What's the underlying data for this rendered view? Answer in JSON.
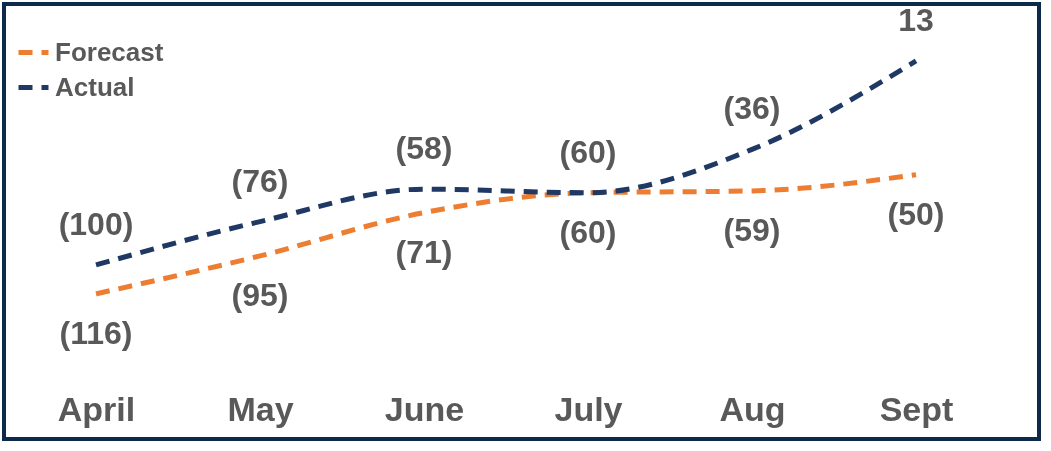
{
  "chart_data": {
    "type": "line",
    "categories": [
      "April",
      "May",
      "June",
      "July",
      "Aug",
      "Sept"
    ],
    "series": [
      {
        "name": "Forecast",
        "color": "#ed7d31",
        "values": [
          -116,
          -95,
          -71,
          -60,
          -59,
          -50
        ],
        "value_labels": [
          "(116)",
          "(95)",
          "(71)",
          "(60)",
          "(59)",
          "(50)"
        ]
      },
      {
        "name": "Actual",
        "color": "#1f3864",
        "values": [
          -100,
          -76,
          -58,
          -60,
          -36,
          13
        ],
        "value_labels": [
          "(100)",
          "(76)",
          "(58)",
          "(60)",
          "(36)",
          "13"
        ]
      }
    ],
    "line_style": "dashed",
    "marker": "none",
    "legend": "top left",
    "grid": false
  }
}
